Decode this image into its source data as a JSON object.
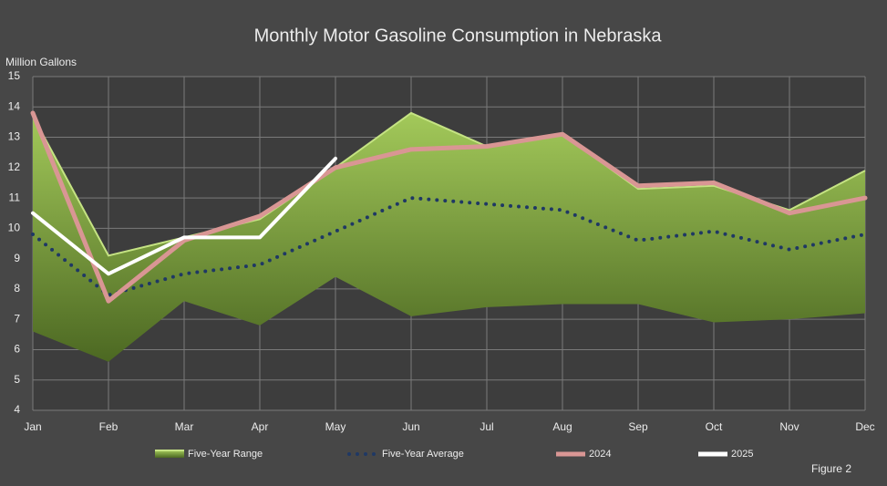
{
  "chart_data": {
    "type": "line",
    "title": "Monthly Motor Gasoline Consumption in Nebraska",
    "y_label": "Million Gallons",
    "note": "Figure 2",
    "categories": [
      "Jan",
      "Feb",
      "Mar",
      "Apr",
      "May",
      "Jun",
      "Jul",
      "Aug",
      "Sep",
      "Oct",
      "Nov",
      "Dec"
    ],
    "ylim": [
      4,
      15
    ],
    "yticks": [
      4,
      5,
      6,
      7,
      8,
      9,
      10,
      11,
      12,
      13,
      14,
      15
    ],
    "grid": true,
    "series": [
      {
        "name": "Five-Year Range",
        "color": "#8db34a",
        "high": [
          13.7,
          9.1,
          9.7,
          10.3,
          12.0,
          13.8,
          12.7,
          13.1,
          11.3,
          11.4,
          10.6,
          11.9
        ],
        "low": [
          6.6,
          5.6,
          7.6,
          6.8,
          8.4,
          7.1,
          7.4,
          7.5,
          7.5,
          6.9,
          7.0,
          7.2
        ]
      },
      {
        "name": "Five-Year Average",
        "color": "#1f3864",
        "values": [
          9.8,
          7.8,
          8.5,
          8.8,
          9.9,
          11.0,
          10.8,
          10.6,
          9.6,
          9.9,
          9.3,
          9.8
        ]
      },
      {
        "name": "2024",
        "color": "#d99694",
        "values": [
          13.8,
          7.6,
          9.6,
          10.4,
          12.0,
          12.6,
          12.7,
          13.1,
          11.4,
          11.5,
          10.5,
          11.0
        ]
      },
      {
        "name": "2025",
        "color": "#ffffff",
        "values": [
          10.5,
          8.5,
          9.7,
          9.7,
          12.3,
          null,
          null,
          null,
          null,
          null,
          null,
          null
        ]
      }
    ]
  }
}
